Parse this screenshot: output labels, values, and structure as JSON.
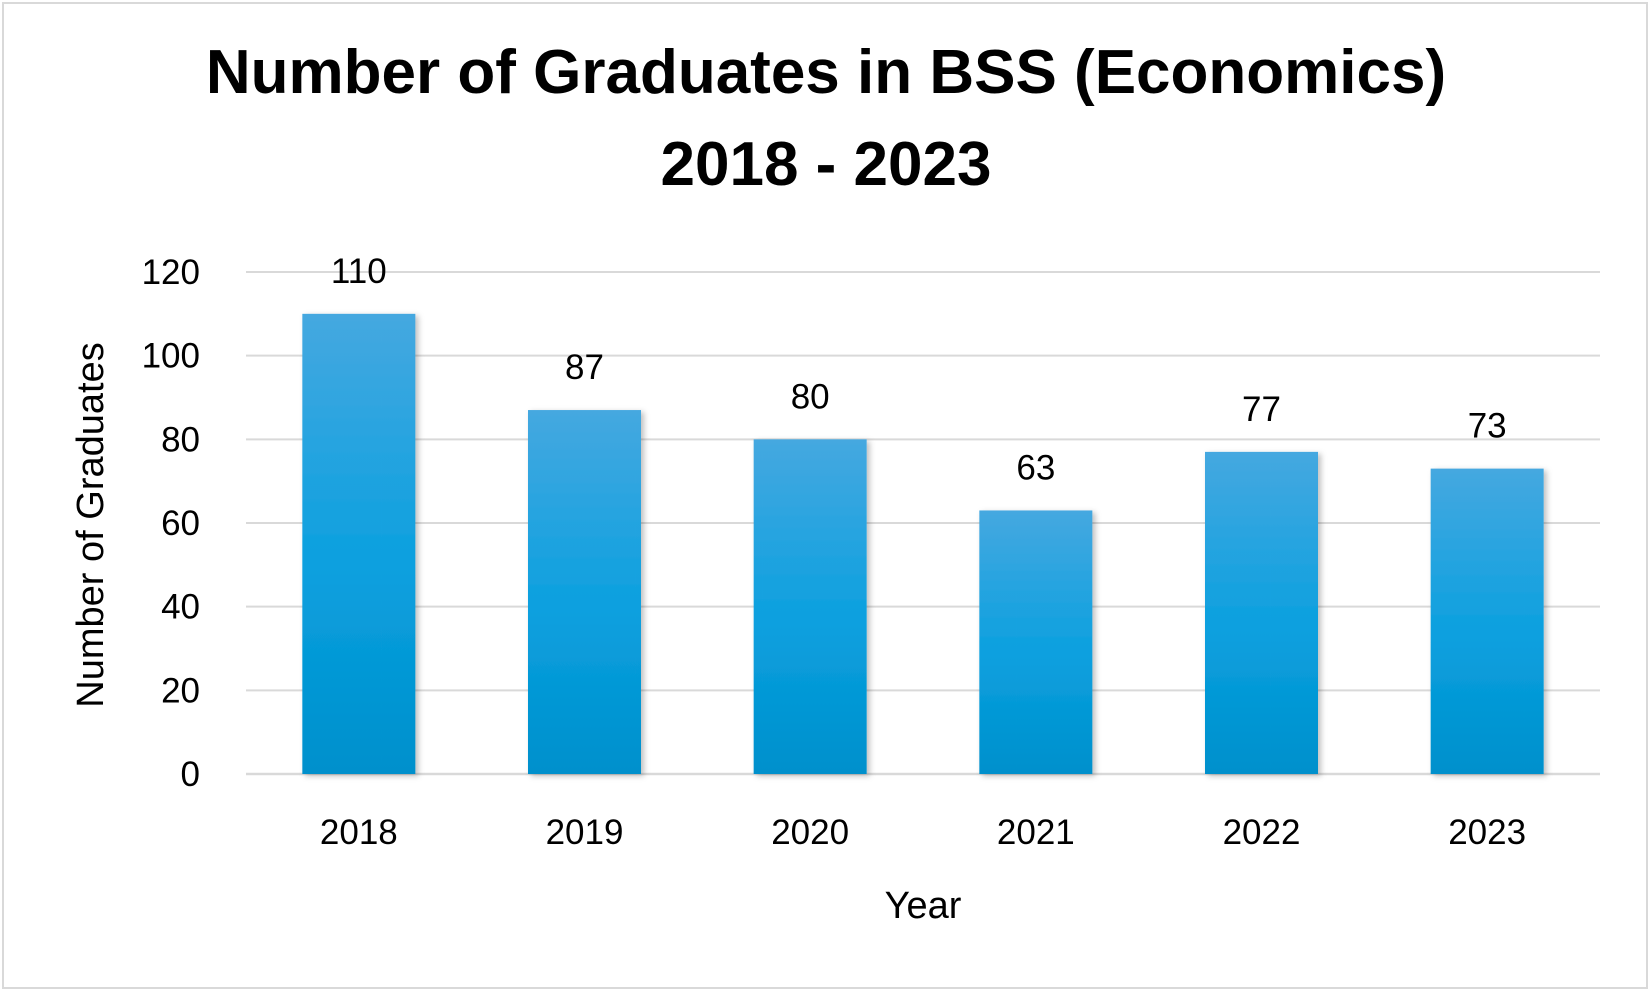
{
  "chart_data": {
    "type": "bar",
    "title_line1": "Number of Graduates in BSS (Economics)",
    "title_line2": "2018 - 2023",
    "categories": [
      "2018",
      "2019",
      "2020",
      "2021",
      "2022",
      "2023"
    ],
    "values": [
      110,
      87,
      80,
      63,
      77,
      73
    ],
    "data_labels": [
      "110",
      "87",
      "80",
      "63",
      "77",
      "73"
    ],
    "xlabel": "Year",
    "ylabel": "Number of Graduates",
    "ylim": [
      0,
      120
    ],
    "yticks": [
      "0",
      "20",
      "40",
      "60",
      "80",
      "100",
      "120"
    ],
    "grid": true,
    "legend": "none",
    "bar_color_top": "#45a8e0",
    "bar_color_mid": "#0aa0df",
    "bar_color_bottom": "#0090cc",
    "grid_color": "#d9d9d9"
  }
}
